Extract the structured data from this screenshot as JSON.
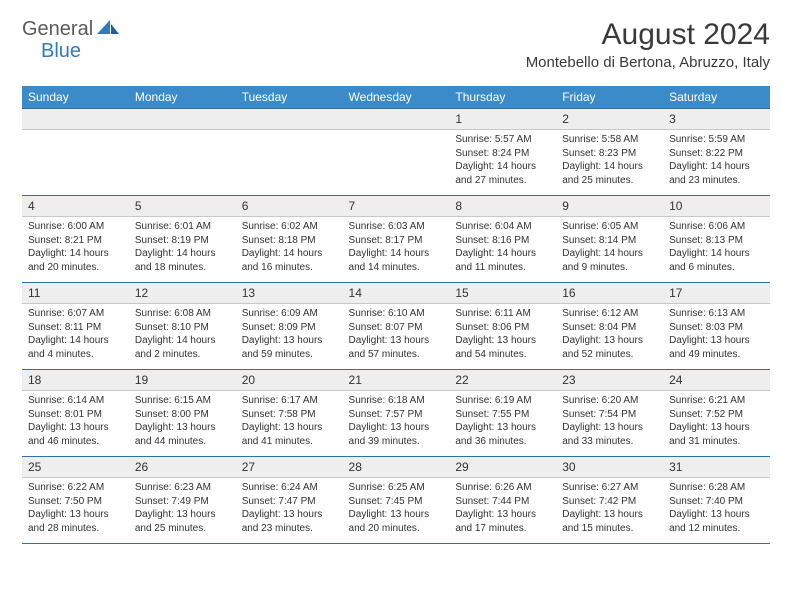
{
  "brand": {
    "general": "General",
    "blue": "Blue"
  },
  "title": "August 2024",
  "location": "Montebello di Bertona, Abruzzo, Italy",
  "colors": {
    "header_bg": "#3b8bc9",
    "header_text": "#ffffff",
    "daynum_bg": "#eeeeee",
    "border_top": "#2f6fa8",
    "text": "#333333",
    "brand_gray": "#5a5a5a",
    "brand_blue": "#2f7bbf"
  },
  "weekdays": [
    "Sunday",
    "Monday",
    "Tuesday",
    "Wednesday",
    "Thursday",
    "Friday",
    "Saturday"
  ],
  "weeks": [
    {
      "nums": [
        "",
        "",
        "",
        "",
        "1",
        "2",
        "3"
      ],
      "cells": [
        null,
        null,
        null,
        null,
        {
          "sr": "Sunrise: 5:57 AM",
          "ss": "Sunset: 8:24 PM",
          "d1": "Daylight: 14 hours",
          "d2": "and 27 minutes."
        },
        {
          "sr": "Sunrise: 5:58 AM",
          "ss": "Sunset: 8:23 PM",
          "d1": "Daylight: 14 hours",
          "d2": "and 25 minutes."
        },
        {
          "sr": "Sunrise: 5:59 AM",
          "ss": "Sunset: 8:22 PM",
          "d1": "Daylight: 14 hours",
          "d2": "and 23 minutes."
        }
      ]
    },
    {
      "nums": [
        "4",
        "5",
        "6",
        "7",
        "8",
        "9",
        "10"
      ],
      "cells": [
        {
          "sr": "Sunrise: 6:00 AM",
          "ss": "Sunset: 8:21 PM",
          "d1": "Daylight: 14 hours",
          "d2": "and 20 minutes."
        },
        {
          "sr": "Sunrise: 6:01 AM",
          "ss": "Sunset: 8:19 PM",
          "d1": "Daylight: 14 hours",
          "d2": "and 18 minutes."
        },
        {
          "sr": "Sunrise: 6:02 AM",
          "ss": "Sunset: 8:18 PM",
          "d1": "Daylight: 14 hours",
          "d2": "and 16 minutes."
        },
        {
          "sr": "Sunrise: 6:03 AM",
          "ss": "Sunset: 8:17 PM",
          "d1": "Daylight: 14 hours",
          "d2": "and 14 minutes."
        },
        {
          "sr": "Sunrise: 6:04 AM",
          "ss": "Sunset: 8:16 PM",
          "d1": "Daylight: 14 hours",
          "d2": "and 11 minutes."
        },
        {
          "sr": "Sunrise: 6:05 AM",
          "ss": "Sunset: 8:14 PM",
          "d1": "Daylight: 14 hours",
          "d2": "and 9 minutes."
        },
        {
          "sr": "Sunrise: 6:06 AM",
          "ss": "Sunset: 8:13 PM",
          "d1": "Daylight: 14 hours",
          "d2": "and 6 minutes."
        }
      ]
    },
    {
      "nums": [
        "11",
        "12",
        "13",
        "14",
        "15",
        "16",
        "17"
      ],
      "cells": [
        {
          "sr": "Sunrise: 6:07 AM",
          "ss": "Sunset: 8:11 PM",
          "d1": "Daylight: 14 hours",
          "d2": "and 4 minutes."
        },
        {
          "sr": "Sunrise: 6:08 AM",
          "ss": "Sunset: 8:10 PM",
          "d1": "Daylight: 14 hours",
          "d2": "and 2 minutes."
        },
        {
          "sr": "Sunrise: 6:09 AM",
          "ss": "Sunset: 8:09 PM",
          "d1": "Daylight: 13 hours",
          "d2": "and 59 minutes."
        },
        {
          "sr": "Sunrise: 6:10 AM",
          "ss": "Sunset: 8:07 PM",
          "d1": "Daylight: 13 hours",
          "d2": "and 57 minutes."
        },
        {
          "sr": "Sunrise: 6:11 AM",
          "ss": "Sunset: 8:06 PM",
          "d1": "Daylight: 13 hours",
          "d2": "and 54 minutes."
        },
        {
          "sr": "Sunrise: 6:12 AM",
          "ss": "Sunset: 8:04 PM",
          "d1": "Daylight: 13 hours",
          "d2": "and 52 minutes."
        },
        {
          "sr": "Sunrise: 6:13 AM",
          "ss": "Sunset: 8:03 PM",
          "d1": "Daylight: 13 hours",
          "d2": "and 49 minutes."
        }
      ]
    },
    {
      "nums": [
        "18",
        "19",
        "20",
        "21",
        "22",
        "23",
        "24"
      ],
      "cells": [
        {
          "sr": "Sunrise: 6:14 AM",
          "ss": "Sunset: 8:01 PM",
          "d1": "Daylight: 13 hours",
          "d2": "and 46 minutes."
        },
        {
          "sr": "Sunrise: 6:15 AM",
          "ss": "Sunset: 8:00 PM",
          "d1": "Daylight: 13 hours",
          "d2": "and 44 minutes."
        },
        {
          "sr": "Sunrise: 6:17 AM",
          "ss": "Sunset: 7:58 PM",
          "d1": "Daylight: 13 hours",
          "d2": "and 41 minutes."
        },
        {
          "sr": "Sunrise: 6:18 AM",
          "ss": "Sunset: 7:57 PM",
          "d1": "Daylight: 13 hours",
          "d2": "and 39 minutes."
        },
        {
          "sr": "Sunrise: 6:19 AM",
          "ss": "Sunset: 7:55 PM",
          "d1": "Daylight: 13 hours",
          "d2": "and 36 minutes."
        },
        {
          "sr": "Sunrise: 6:20 AM",
          "ss": "Sunset: 7:54 PM",
          "d1": "Daylight: 13 hours",
          "d2": "and 33 minutes."
        },
        {
          "sr": "Sunrise: 6:21 AM",
          "ss": "Sunset: 7:52 PM",
          "d1": "Daylight: 13 hours",
          "d2": "and 31 minutes."
        }
      ]
    },
    {
      "nums": [
        "25",
        "26",
        "27",
        "28",
        "29",
        "30",
        "31"
      ],
      "cells": [
        {
          "sr": "Sunrise: 6:22 AM",
          "ss": "Sunset: 7:50 PM",
          "d1": "Daylight: 13 hours",
          "d2": "and 28 minutes."
        },
        {
          "sr": "Sunrise: 6:23 AM",
          "ss": "Sunset: 7:49 PM",
          "d1": "Daylight: 13 hours",
          "d2": "and 25 minutes."
        },
        {
          "sr": "Sunrise: 6:24 AM",
          "ss": "Sunset: 7:47 PM",
          "d1": "Daylight: 13 hours",
          "d2": "and 23 minutes."
        },
        {
          "sr": "Sunrise: 6:25 AM",
          "ss": "Sunset: 7:45 PM",
          "d1": "Daylight: 13 hours",
          "d2": "and 20 minutes."
        },
        {
          "sr": "Sunrise: 6:26 AM",
          "ss": "Sunset: 7:44 PM",
          "d1": "Daylight: 13 hours",
          "d2": "and 17 minutes."
        },
        {
          "sr": "Sunrise: 6:27 AM",
          "ss": "Sunset: 7:42 PM",
          "d1": "Daylight: 13 hours",
          "d2": "and 15 minutes."
        },
        {
          "sr": "Sunrise: 6:28 AM",
          "ss": "Sunset: 7:40 PM",
          "d1": "Daylight: 13 hours",
          "d2": "and 12 minutes."
        }
      ]
    }
  ]
}
